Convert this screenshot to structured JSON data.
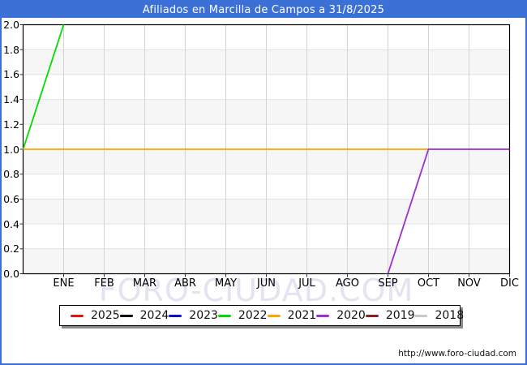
{
  "window": {
    "title": "Afiliados en Marcilla de Campos a 31/8/2025"
  },
  "watermark": "FORO-CIUDAD.COM",
  "footer": {
    "url": "http://www.foro-ciudad.com"
  },
  "colors": {
    "accent_blue": "#3b71d6",
    "plot_border": "#000000",
    "band_gray": "#f6f6f6",
    "grid_vertical": "#d4d4d4",
    "grid_horizontal": "#e2e2e2",
    "tick": "#333333",
    "watermark": "#e4e3f2"
  },
  "chart_data": {
    "type": "line",
    "title": "Afiliados en Marcilla de Campos a 31/8/2025",
    "xlabel": "",
    "ylabel": "",
    "categories": [
      "ENE",
      "FEB",
      "MAR",
      "ABR",
      "MAY",
      "JUN",
      "JUL",
      "AGO",
      "SEP",
      "OCT",
      "NOV",
      "DIC"
    ],
    "y_ticks": [
      "2.0",
      "1.8",
      "1.6",
      "1.4",
      "1.2",
      "1.0",
      "0.8",
      "0.6",
      "0.4",
      "0.2",
      "0.0"
    ],
    "ylim": [
      0,
      2
    ],
    "grid": true,
    "legend_position": "bottom",
    "x_axis_note": "x: 0 = borde izquierdo del eje, 1-12 = ENE-DIC",
    "series": [
      {
        "name": "2025",
        "color": "#e81010",
        "points": []
      },
      {
        "name": "2024",
        "color": "#000000",
        "points": []
      },
      {
        "name": "2023",
        "color": "#1010d0",
        "points": []
      },
      {
        "name": "2022",
        "color": "#00dd00",
        "points": [
          [
            0,
            1
          ],
          [
            1,
            2
          ]
        ]
      },
      {
        "name": "2021",
        "color": "#ffa500",
        "points": [
          [
            0,
            1
          ],
          [
            10,
            1
          ]
        ]
      },
      {
        "name": "2020",
        "color": "#9c2fd0",
        "points": [
          [
            9,
            0
          ],
          [
            10,
            1
          ],
          [
            12,
            1
          ]
        ]
      },
      {
        "name": "2019",
        "color": "#8b2020",
        "points": []
      },
      {
        "name": "2018",
        "color": "#c8c8c8",
        "points": []
      }
    ]
  }
}
